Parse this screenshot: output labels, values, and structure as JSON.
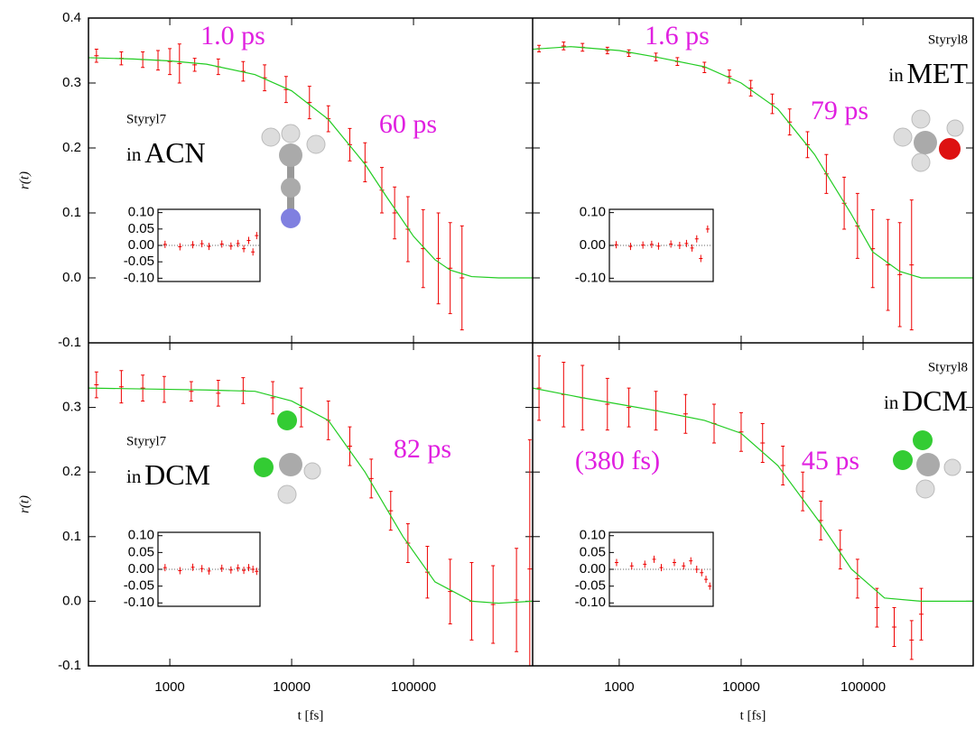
{
  "chart_data": [
    {
      "type": "scatter",
      "xscale": "log",
      "xlim": [
        215,
        950000
      ],
      "ylim": [
        -0.1,
        0.4
      ],
      "yticks": [
        0.4,
        0.3,
        0.2,
        0.1,
        {
          "value": 0,
          "label": "0.0"
        },
        -0.1
      ],
      "ylabel": "r(t)",
      "color": "#ee0000",
      "x": [
        250,
        400,
        600,
        800,
        1000,
        1200,
        1600,
        2500,
        4000,
        6000,
        9000,
        14000,
        20000,
        30000,
        40000,
        55000,
        70000,
        90000,
        120000,
        160000,
        200000,
        250000
      ],
      "values": [
        0.342,
        0.338,
        0.336,
        0.335,
        0.333,
        0.33,
        0.328,
        0.325,
        0.318,
        0.308,
        0.29,
        0.27,
        0.245,
        0.205,
        0.178,
        0.135,
        0.1,
        0.075,
        0.045,
        0.03,
        0.015,
        0.0
      ],
      "errors": [
        0.01,
        0.01,
        0.012,
        0.015,
        0.02,
        0.03,
        0.01,
        0.012,
        0.015,
        0.02,
        0.02,
        0.025,
        0.02,
        0.025,
        0.03,
        0.035,
        0.04,
        0.05,
        0.06,
        0.07,
        0.07,
        0.08
      ],
      "fit": {
        "color": "#22cc22",
        "x": [
          215,
          500,
          1000,
          2000,
          5000,
          10000,
          20000,
          40000,
          60000,
          100000,
          150000,
          200000,
          300000,
          500000,
          950000
        ],
        "values": [
          0.339,
          0.337,
          0.334,
          0.329,
          0.313,
          0.288,
          0.244,
          0.175,
          0.125,
          0.064,
          0.028,
          0.012,
          0.002,
          0.0,
          0.0
        ]
      },
      "annotations": [
        "1.0 ps",
        "60 ps"
      ],
      "label": {
        "sample": "Styryl7",
        "prefix": "in",
        "solvent": "ACN"
      },
      "inset": {
        "xlim": [
          200,
          5000
        ],
        "ylim": [
          -0.11,
          0.11
        ],
        "yticks": [
          {
            "value": 0.1,
            "label": "0.10"
          },
          0.05,
          {
            "value": 0,
            "label": "0.00"
          },
          -0.05,
          {
            "value": -0.1,
            "label": "-0.10"
          }
        ],
        "x": [
          250,
          400,
          600,
          800,
          1000,
          1500,
          2000,
          2500,
          3000,
          3500,
          4000,
          4500
        ],
        "values": [
          0.003,
          -0.004,
          0.002,
          0.005,
          -0.003,
          0.004,
          -0.002,
          0.006,
          -0.01,
          0.015,
          -0.02,
          0.03
        ]
      }
    },
    {
      "type": "scatter",
      "xscale": "log",
      "xlim": [
        195,
        800000
      ],
      "ylim": [
        -0.1,
        0.4
      ],
      "color": "#ee0000",
      "x": [
        220,
        350,
        500,
        800,
        1200,
        2000,
        3000,
        5000,
        8000,
        12000,
        18000,
        25000,
        35000,
        50000,
        70000,
        90000,
        120000,
        160000,
        200000,
        250000
      ],
      "values": [
        0.353,
        0.357,
        0.355,
        0.35,
        0.346,
        0.34,
        0.333,
        0.324,
        0.31,
        0.292,
        0.268,
        0.24,
        0.205,
        0.16,
        0.115,
        0.08,
        0.045,
        0.02,
        0.005,
        0.02
      ],
      "errors": [
        0.005,
        0.006,
        0.006,
        0.005,
        0.005,
        0.006,
        0.006,
        0.008,
        0.01,
        0.012,
        0.015,
        0.02,
        0.02,
        0.03,
        0.04,
        0.05,
        0.06,
        0.07,
        0.08,
        0.1
      ],
      "fit": {
        "color": "#22cc22",
        "x": [
          195,
          400,
          1000,
          2000,
          5000,
          10000,
          20000,
          40000,
          79000,
          120000,
          200000,
          300000,
          800000
        ],
        "values": [
          0.352,
          0.356,
          0.35,
          0.34,
          0.325,
          0.3,
          0.26,
          0.19,
          0.1,
          0.04,
          0.01,
          0.0,
          0.0
        ]
      },
      "annotations": [
        "1.6 ps",
        "79 ps"
      ],
      "label": {
        "sample": "Styryl8",
        "prefix": "in",
        "solvent": "MET"
      },
      "inset": {
        "xlim": [
          200,
          6000
        ],
        "ylim": [
          -0.11,
          0.11
        ],
        "yticks": [
          {
            "value": 0.1,
            "label": "0.10"
          },
          {
            "value": 0,
            "label": "0.00"
          },
          {
            "value": -0.1,
            "label": "-0.10"
          }
        ],
        "x": [
          250,
          400,
          600,
          800,
          1000,
          1500,
          2000,
          2500,
          3000,
          3500,
          4000,
          5000
        ],
        "values": [
          0.002,
          -0.003,
          0.001,
          0.003,
          -0.002,
          0.004,
          0.0,
          0.006,
          -0.008,
          0.02,
          -0.04,
          0.05
        ]
      }
    },
    {
      "type": "scatter",
      "xscale": "log",
      "xlim": [
        215,
        950000
      ],
      "ylim": [
        -0.1,
        0.4
      ],
      "yticks": [
        0.3,
        0.2,
        0.1,
        {
          "value": 0,
          "label": "0.0"
        },
        -0.1
      ],
      "ylabel": "r(t)",
      "xlabel": "t [fs]",
      "xticks": [
        1000,
        10000,
        100000
      ],
      "color": "#ee0000",
      "x": [
        250,
        400,
        600,
        900,
        1500,
        2500,
        4000,
        7000,
        12000,
        20000,
        30000,
        45000,
        65000,
        90000,
        130000,
        200000,
        300000,
        450000,
        700000,
        900000
      ],
      "values": [
        0.335,
        0.332,
        0.33,
        0.328,
        0.325,
        0.322,
        0.326,
        0.315,
        0.3,
        0.28,
        0.24,
        0.19,
        0.14,
        0.09,
        0.045,
        0.015,
        0.0,
        -0.005,
        0.002,
        0.05
      ],
      "errors": [
        0.02,
        0.025,
        0.02,
        0.02,
        0.015,
        0.02,
        0.02,
        0.025,
        0.03,
        0.03,
        0.03,
        0.03,
        0.03,
        0.03,
        0.04,
        0.05,
        0.06,
        0.06,
        0.08,
        0.2
      ],
      "fit": {
        "color": "#22cc22",
        "x": [
          215,
          1000,
          2000,
          5000,
          10000,
          20000,
          40000,
          82000,
          150000,
          300000,
          500000,
          950000
        ],
        "values": [
          0.33,
          0.328,
          0.327,
          0.325,
          0.31,
          0.28,
          0.2,
          0.1,
          0.03,
          0.0,
          -0.003,
          0.0
        ]
      },
      "annotations": [
        "82 ps"
      ],
      "label": {
        "sample": "Styryl7",
        "prefix": "in",
        "solvent": "DCM"
      },
      "inset": {
        "xlim": [
          200,
          5000
        ],
        "ylim": [
          -0.11,
          0.11
        ],
        "yticks": [
          {
            "value": 0.1,
            "label": "0.10"
          },
          0.05,
          {
            "value": 0,
            "label": "0.00"
          },
          -0.05,
          {
            "value": -0.1,
            "label": "-0.10"
          }
        ],
        "x": [
          250,
          400,
          600,
          800,
          1000,
          1500,
          2000,
          2500,
          3000,
          3500,
          4000,
          4500
        ],
        "values": [
          0.005,
          -0.004,
          0.006,
          0.002,
          -0.005,
          0.003,
          -0.002,
          0.004,
          -0.003,
          0.005,
          0.0,
          -0.006
        ]
      }
    },
    {
      "type": "scatter",
      "xscale": "log",
      "xlim": [
        195,
        800000
      ],
      "ylim": [
        -0.1,
        0.4
      ],
      "xlabel": "t [fs]",
      "xticks": [
        1000,
        10000,
        100000
      ],
      "color": "#ee0000",
      "x": [
        220,
        350,
        500,
        800,
        1200,
        2000,
        3500,
        6000,
        10000,
        15000,
        22000,
        32000,
        45000,
        65000,
        90000,
        130000,
        180000,
        250000,
        300000
      ],
      "values": [
        0.33,
        0.32,
        0.315,
        0.305,
        0.3,
        0.295,
        0.29,
        0.275,
        0.262,
        0.245,
        0.21,
        0.17,
        0.125,
        0.08,
        0.035,
        -0.01,
        -0.04,
        -0.06,
        -0.02
      ],
      "errors": [
        0.05,
        0.05,
        0.05,
        0.04,
        0.03,
        0.03,
        0.03,
        0.03,
        0.03,
        0.03,
        0.03,
        0.03,
        0.03,
        0.03,
        0.03,
        0.03,
        0.03,
        0.03,
        0.04
      ],
      "fit": {
        "color": "#22cc22",
        "x": [
          195,
          500,
          1000,
          2000,
          5000,
          10000,
          20000,
          45000,
          80000,
          150000,
          300000,
          800000
        ],
        "values": [
          0.33,
          0.315,
          0.305,
          0.295,
          0.28,
          0.26,
          0.21,
          0.12,
          0.05,
          0.005,
          0.0,
          0.0
        ]
      },
      "annotations": [
        "(380 fs)",
        "45 ps"
      ],
      "label": {
        "sample": "Styryl8",
        "prefix": "in",
        "solvent": "DCM"
      },
      "inset": {
        "xlim": [
          200,
          5000
        ],
        "ylim": [
          -0.11,
          0.11
        ],
        "yticks": [
          {
            "value": 0.1,
            "label": "0.10"
          },
          0.05,
          {
            "value": 0,
            "label": "0.00"
          },
          -0.05,
          {
            "value": -0.1,
            "label": "-0.10"
          }
        ],
        "x": [
          250,
          400,
          600,
          800,
          1000,
          1500,
          2000,
          2500,
          3000,
          3500,
          4000,
          4500
        ],
        "values": [
          0.02,
          0.01,
          0.015,
          0.03,
          0.005,
          0.02,
          0.01,
          0.025,
          0.0,
          -0.01,
          -0.03,
          -0.05
        ]
      }
    }
  ]
}
